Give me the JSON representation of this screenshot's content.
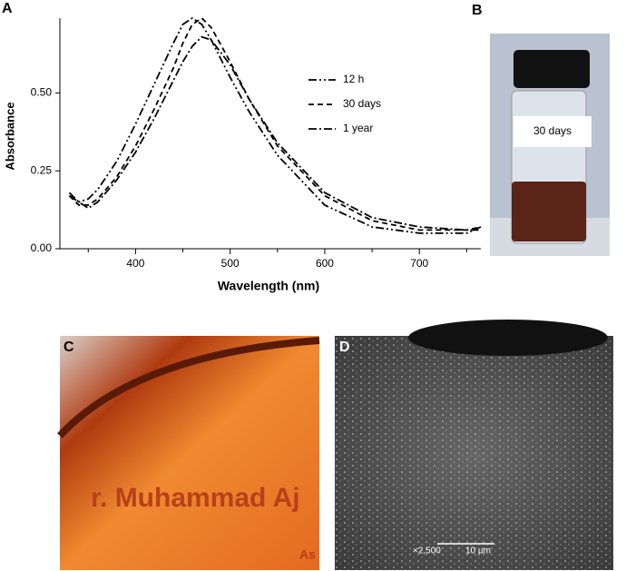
{
  "panel_labels": [
    "A",
    "B",
    "C",
    "D"
  ],
  "chart_data": {
    "type": "line",
    "xlabel": "Wavelength (nm)",
    "ylabel": "Absorbance",
    "x": [
      330,
      340,
      350,
      360,
      380,
      400,
      420,
      440,
      450,
      460,
      470,
      480,
      500,
      520,
      550,
      600,
      650,
      700,
      750,
      765
    ],
    "series": [
      {
        "name": "12 h",
        "color": "#000000",
        "dash": "9,3,2,3,2,3",
        "values": [
          0.17,
          0.15,
          0.16,
          0.19,
          0.28,
          0.4,
          0.53,
          0.66,
          0.72,
          0.74,
          0.72,
          0.67,
          0.55,
          0.44,
          0.3,
          0.14,
          0.07,
          0.05,
          0.05,
          0.07
        ]
      },
      {
        "name": "30 days",
        "color": "#000000",
        "dash": "6,4",
        "values": [
          0.17,
          0.14,
          0.14,
          0.16,
          0.23,
          0.33,
          0.45,
          0.58,
          0.66,
          0.72,
          0.74,
          0.71,
          0.6,
          0.48,
          0.33,
          0.17,
          0.09,
          0.06,
          0.06,
          0.07
        ]
      },
      {
        "name": "1 year",
        "color": "#000000",
        "dash": "9,3,2,3",
        "values": [
          0.18,
          0.15,
          0.13,
          0.15,
          0.22,
          0.31,
          0.42,
          0.54,
          0.6,
          0.65,
          0.68,
          0.67,
          0.59,
          0.48,
          0.34,
          0.18,
          0.1,
          0.07,
          0.06,
          0.06
        ]
      }
    ],
    "xlim": [
      320,
      765
    ],
    "xticks": [
      400,
      500,
      600,
      700
    ],
    "xminor_ticks": [
      350,
      450,
      550,
      650,
      750
    ],
    "ylim": [
      0,
      0.74
    ],
    "yticks": [
      {
        "value": 0,
        "label": "0.00"
      },
      {
        "value": 0.25,
        "label": "0.25"
      },
      {
        "value": 0.5,
        "label": "0.50"
      }
    ],
    "grid": false,
    "legend": "upper right"
  },
  "photo_b": {
    "label": "30 days"
  },
  "photo_c": {
    "text": "r. Muhammad Aj",
    "text2": "As"
  },
  "photo_d": {
    "magnification": "×2,500",
    "scale_bar": "10 µm"
  }
}
